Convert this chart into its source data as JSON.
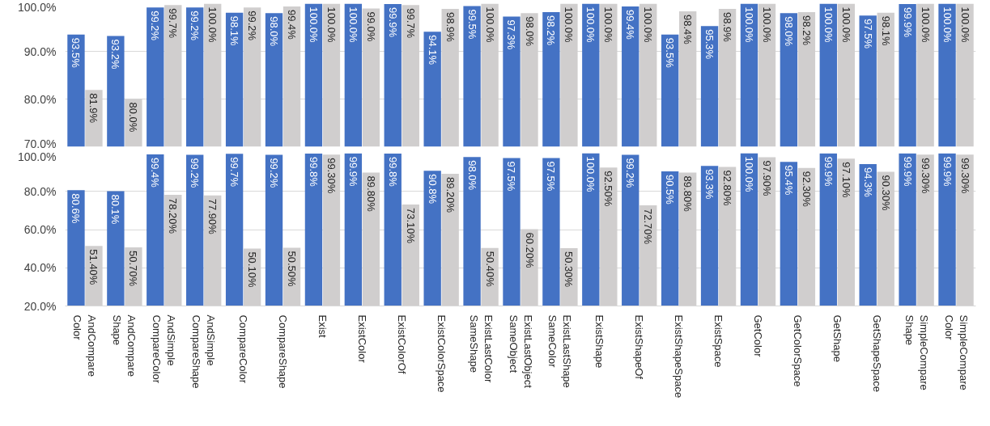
{
  "chart_data": [
    {
      "type": "bar",
      "categories": [
        null,
        null,
        null,
        null,
        null,
        null,
        null,
        null,
        null,
        null,
        null,
        null,
        null,
        null,
        null,
        null,
        null,
        null,
        null,
        null,
        null,
        null,
        null
      ],
      "series": [
        {
          "color": "#4472c4",
          "values": [
            93.5,
            93.2,
            99.2,
            99.2,
            98.1,
            98.0,
            100.0,
            100.0,
            99.9,
            94.1,
            99.5,
            97.3,
            98.2,
            100.0,
            99.4,
            93.5,
            95.3,
            100.0,
            98.0,
            100.0,
            97.5,
            99.9,
            100.0
          ],
          "value_labels": [
            "93.5%",
            "93.2%",
            "99.2%",
            "99.2%",
            "98.1%",
            "98.0%",
            "100.0%",
            "100.0%",
            "99.9%",
            "94.1%",
            "99.5%",
            "97.3%",
            "98.2%",
            "100.0%",
            "99.4%",
            "93.5%",
            "95.3%",
            "100.0%",
            "98.0%",
            "100.0%",
            "97.5%",
            "99.9%",
            "100.0%"
          ]
        },
        {
          "color": "#d0cece",
          "values": [
            81.9,
            80.0,
            99.7,
            100.0,
            99.2,
            99.4,
            100.0,
            99.0,
            99.7,
            98.9,
            100.0,
            98.0,
            100.0,
            100.0,
            100.0,
            98.4,
            98.9,
            100.0,
            98.2,
            100.0,
            98.1,
            100.0,
            100.0
          ],
          "value_labels": [
            "81.9%",
            "80.0%",
            "99.7%",
            "100.0%",
            "99.2%",
            "99.4%",
            "100.0%",
            "99.0%",
            "99.7%",
            "98.9%",
            "100.0%",
            "98.0%",
            "100.0%",
            "100.0%",
            "100.0%",
            "98.4%",
            "98.9%",
            "100.0%",
            "98.2%",
            "100.0%",
            "98.1%",
            "100.0%",
            "100.0%"
          ]
        }
      ],
      "ylim": [
        70,
        100
      ],
      "yticks": [
        {
          "value": 70,
          "label": "70.0%"
        },
        {
          "value": 80,
          "label": "80.0%"
        },
        {
          "value": 90,
          "label": "90.0%"
        },
        {
          "value": 100,
          "label": "100.0%"
        }
      ],
      "grid": "y"
    },
    {
      "type": "bar",
      "categories": [
        "AndCompare\nColor",
        "AndCompare\nShape",
        "AndSimple\nCompareColor",
        "AndSimple\nCompareShape",
        "CompareColor",
        "CompareShape",
        "Exist",
        "ExistColor",
        "ExistColorOf",
        "ExistColorSpace",
        "ExistLastColor\nSameShape",
        "ExistLastObject\nSameObject",
        "ExistLastShape\nSameColor",
        "ExistShape",
        "ExistShapeOf",
        "ExistShapeSpace",
        "ExistSpace",
        "GetColor",
        "GetColorSpace",
        "GetShape",
        "GetShapeSpace",
        "SimpleCompare\nShape",
        "SimpleCompare\nColor"
      ],
      "series": [
        {
          "color": "#4472c4",
          "values": [
            80.6,
            80.1,
            99.4,
            99.2,
            99.7,
            99.2,
            99.8,
            99.9,
            99.8,
            90.8,
            98.0,
            97.5,
            97.5,
            100.0,
            99.2,
            90.5,
            93.3,
            100.0,
            95.4,
            99.9,
            94.3,
            99.9,
            99.9
          ],
          "value_labels": [
            "80.6%",
            "80.1%",
            "99.4%",
            "99.2%",
            "99.7%",
            "99.2%",
            "99.8%",
            "99.9%",
            "99.8%",
            "90.8%",
            "98.0%",
            "97.5%",
            "97.5%",
            "100.0%",
            "99.2%",
            "90.5%",
            "93.3%",
            "100.0%",
            "95.4%",
            "99.9%",
            "94.3%",
            "99.9%",
            "99.9%"
          ]
        },
        {
          "color": "#d0cece",
          "values": [
            51.4,
            50.7,
            78.2,
            77.9,
            50.1,
            50.5,
            99.3,
            89.8,
            73.1,
            89.2,
            50.4,
            60.2,
            50.3,
            92.5,
            72.7,
            89.8,
            92.8,
            97.9,
            92.3,
            97.1,
            90.3,
            99.3,
            99.3
          ],
          "value_labels": [
            "51.40%",
            "50.70%",
            "78.20%",
            "77.90%",
            "50.10%",
            "50.50%",
            "99.30%",
            "89.80%",
            "73.10%",
            "89.20%",
            "50.40%",
            "60.20%",
            "50.30%",
            "92.50%",
            "72.70%",
            "89.80%",
            "92.80%",
            "97.90%",
            "92.30%",
            "97.10%",
            "90.30%",
            "99.30%",
            "99.30%"
          ]
        }
      ],
      "ylim": [
        20,
        100
      ],
      "yticks": [
        {
          "value": 20,
          "label": "20.0%"
        },
        {
          "value": 40,
          "label": "40.0%"
        },
        {
          "value": 60,
          "label": "60.0%"
        },
        {
          "value": 80,
          "label": "80.0%"
        },
        {
          "value": 100,
          "label": "100.0%"
        }
      ],
      "grid": "y"
    }
  ]
}
